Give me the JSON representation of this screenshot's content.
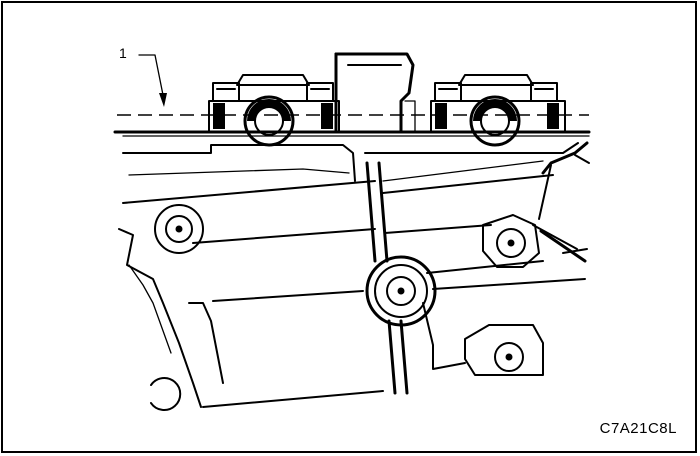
{
  "figure": {
    "code": "C7A21C8L",
    "callouts": [
      {
        "label": "1"
      }
    ]
  },
  "colors": {
    "ink": "#000000",
    "paper": "#ffffff"
  }
}
